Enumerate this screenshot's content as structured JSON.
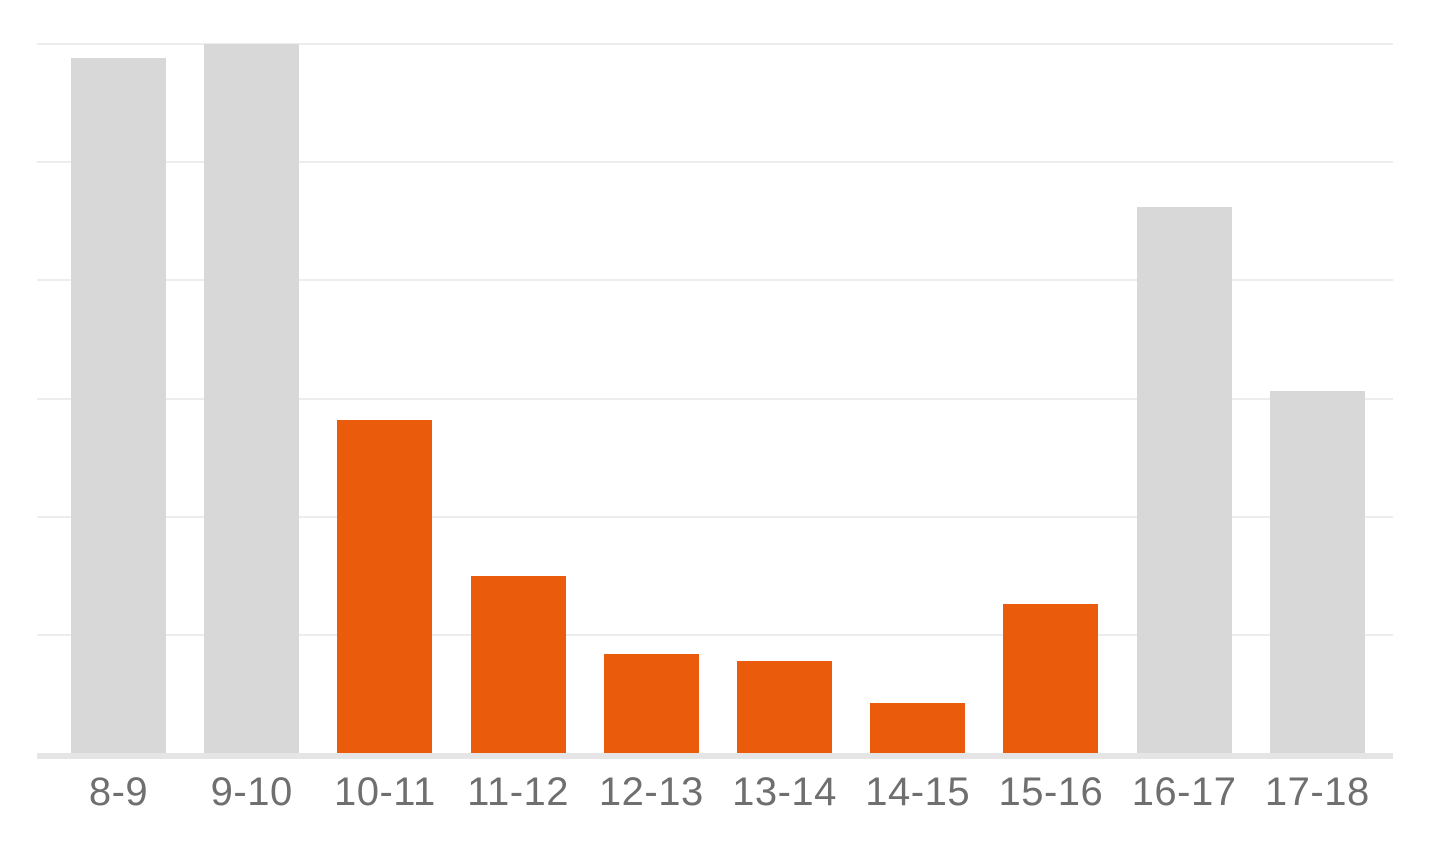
{
  "chart_data": {
    "type": "bar",
    "title": "",
    "xlabel": "",
    "ylabel": "",
    "ylim": [
      0,
      100
    ],
    "grid": "horizontal",
    "gridline_intervals": 6,
    "legend": "none",
    "categories": [
      "8-9",
      "9-10",
      "10-11",
      "11-12",
      "12-13",
      "13-14",
      "14-15",
      "15-16",
      "16-17",
      "17-18"
    ],
    "values": [
      98,
      100,
      47,
      25,
      14,
      13,
      7,
      21,
      77,
      51
    ],
    "highlighted": [
      false,
      false,
      true,
      true,
      true,
      true,
      true,
      true,
      false,
      false
    ],
    "colors": {
      "highlight_bar": "#EB5B0C",
      "default_bar": "#D8D8D8",
      "gridline": "#EDEDED",
      "baseline": "#E5E5E5",
      "label_text": "#6F6F6F",
      "background": "#FFFFFF"
    }
  }
}
